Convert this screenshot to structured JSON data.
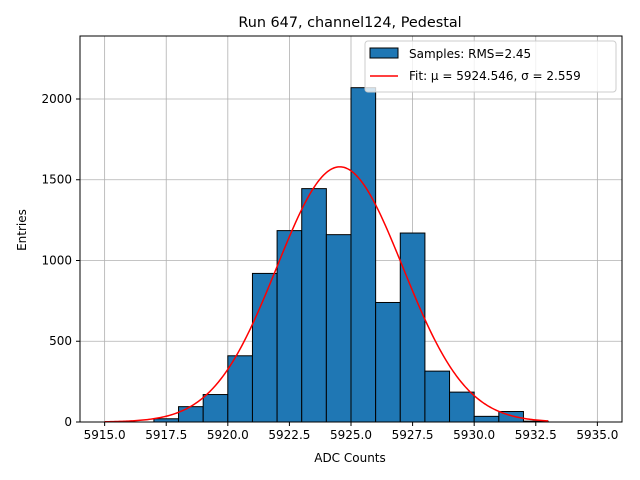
{
  "chart_data": {
    "type": "bar",
    "title": "Run 647, channel124, Pedestal",
    "xlabel": "ADC Counts",
    "ylabel": "Entries",
    "xlim": [
      5914.0,
      5936.0
    ],
    "ylim": [
      0,
      2390
    ],
    "xticks": [
      5915.0,
      5917.5,
      5920.0,
      5922.5,
      5925.0,
      5927.5,
      5930.0,
      5932.5,
      5935.0
    ],
    "xtick_labels": [
      "5915.0",
      "5917.5",
      "5920.0",
      "5922.5",
      "5925.0",
      "5927.5",
      "5930.0",
      "5932.5",
      "5935.0"
    ],
    "yticks": [
      0,
      500,
      1000,
      1500,
      2000
    ],
    "ytick_labels": [
      "0",
      "500",
      "1000",
      "1500",
      "2000"
    ],
    "grid": true,
    "legend_position": "top-right",
    "bin_width": 1,
    "bin_edges": [
      5917,
      5918,
      5919,
      5920,
      5921,
      5922,
      5923,
      5924,
      5925,
      5926,
      5927,
      5928,
      5929,
      5930,
      5931,
      5932
    ],
    "series": [
      {
        "name": "Samples: RMS=2.45",
        "kind": "histogram",
        "color": "#1f77b4",
        "edgecolor": "#000000",
        "values": [
          20,
          95,
          170,
          410,
          920,
          1185,
          1445,
          1160,
          2070,
          740,
          1170,
          315,
          185,
          35,
          65,
          5
        ]
      },
      {
        "name": "Fit: μ = 5924.546, σ = 2.559",
        "kind": "gaussian",
        "color": "#ff0000",
        "mu": 5924.546,
        "sigma": 2.559,
        "amplitude": 1580,
        "x_range": [
          5915.0,
          5933.0
        ]
      }
    ]
  }
}
